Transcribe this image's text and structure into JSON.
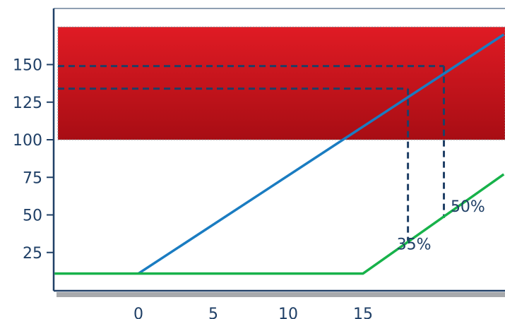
{
  "chart_data": {
    "type": "line",
    "title": "",
    "xlabel": "",
    "ylabel": "",
    "xlim": [
      -5.6,
      24.4
    ],
    "ylim": [
      0,
      200
    ],
    "x_ticks": [
      0,
      5,
      10,
      15
    ],
    "y_ticks": [
      25,
      50,
      75,
      100,
      125,
      150
    ],
    "grid": false,
    "legend": "none",
    "series": [
      {
        "color": "#1a7cc1",
        "x": [
          0,
          24.4
        ],
        "y": [
          11,
          170
        ]
      },
      {
        "color": "#17b24a",
        "x": [
          -5.6,
          15,
          24.4
        ],
        "y": [
          11,
          11,
          77
        ]
      }
    ],
    "shaded_band": {
      "y_from": 100,
      "y_to": 175,
      "color_top": "#e01b24",
      "color_bottom": "#a80d14"
    },
    "reference_lines": [
      {
        "x": 18,
        "y": 134,
        "x_from_y": 32
      },
      {
        "x": 20.4,
        "y": 149,
        "x_from_y": 48
      }
    ],
    "annotations": [
      {
        "text": "35%",
        "x": 18.4,
        "y": 27
      },
      {
        "text": "50%",
        "x": 22,
        "y": 52
      }
    ],
    "colors": {
      "axis": "#1f3f66",
      "axis_shadow": "#a7a9ac",
      "ref_line": "#1f3f66"
    }
  }
}
